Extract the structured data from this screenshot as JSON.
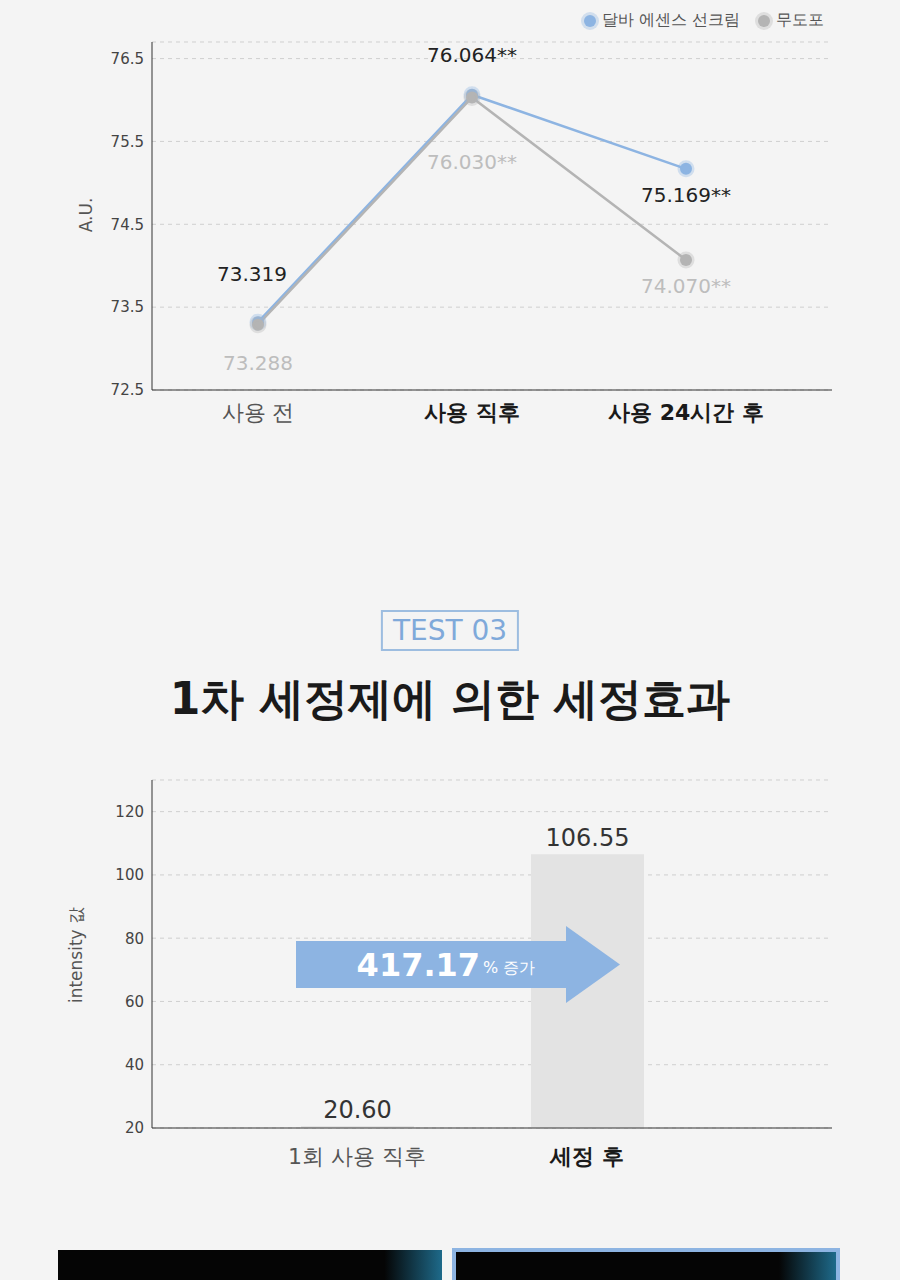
{
  "chart_data": [
    {
      "type": "line",
      "y_label": "A.U.",
      "categories": [
        "사용 전",
        "사용 직후",
        "사용 24시간 후"
      ],
      "series": [
        {
          "name": "달바 에센스 선크림",
          "color": "#8db4e2",
          "values": [
            73.319,
            76.064,
            75.169
          ],
          "value_labels": [
            "73.319",
            "76.064**",
            "75.169**"
          ],
          "marker": "circle"
        },
        {
          "name": "무도포",
          "color": "#b4b4b4",
          "values": [
            73.288,
            76.03,
            74.07
          ],
          "value_labels": [
            "73.288",
            "76.030**",
            "74.070**"
          ],
          "marker": "circle"
        }
      ],
      "ylim": [
        72.5,
        76.7
      ],
      "yticks": [
        72.5,
        73.5,
        74.5,
        75.5,
        76.5
      ],
      "grid": true,
      "legend": "upper right",
      "data_labels": true
    },
    {
      "type": "bar",
      "subtitle": "TEST 03",
      "title": "1차 세정제에 의한 세정효과",
      "y_label": "intensity 값",
      "categories": [
        "1회 사용 직후",
        "세정 후"
      ],
      "values": [
        20.6,
        106.55
      ],
      "value_labels": [
        "20.60",
        "106.55"
      ],
      "color": "#e3e3e3",
      "ylim": [
        20,
        130
      ],
      "yticks": [
        20,
        40,
        60,
        80,
        100,
        120
      ],
      "grid": true,
      "data_labels": true,
      "annotation": {
        "value": 417.17,
        "text": "% 증가"
      }
    }
  ]
}
